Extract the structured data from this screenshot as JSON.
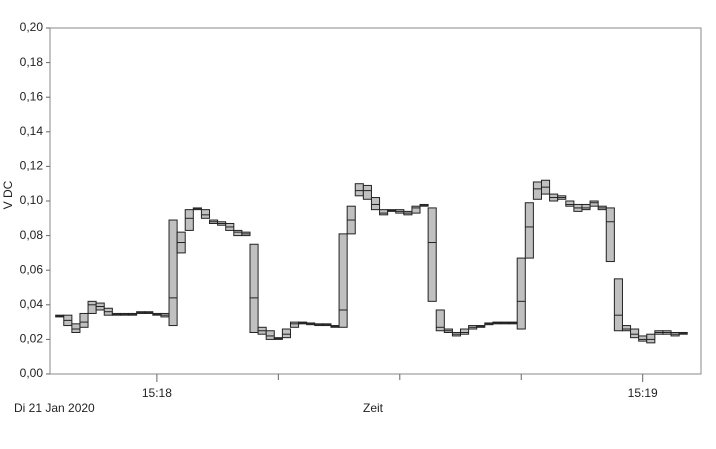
{
  "chart_data": {
    "type": "range-box",
    "y_label": "V DC",
    "x_label": "Zeit",
    "date_label": "Di  21 Jan 2020",
    "xlim": [
      1066.8,
      1147.2
    ],
    "xticks": [
      {
        "value": 1080,
        "label": "15:18"
      },
      {
        "value": 1140,
        "label": "15:19"
      }
    ],
    "xminor_ticks": [
      1095,
      1110,
      1125
    ],
    "ylim": [
      0,
      0.2
    ],
    "yticks": [
      {
        "value": 0,
        "label": "0,00"
      },
      {
        "value": 0.02,
        "label": "0,02"
      },
      {
        "value": 0.04,
        "label": "0,04"
      },
      {
        "value": 0.06,
        "label": "0,06"
      },
      {
        "value": 0.08,
        "label": "0,08"
      },
      {
        "value": 0.1,
        "label": "0,10"
      },
      {
        "value": 0.12,
        "label": "0,12"
      },
      {
        "value": 0.14,
        "label": "0,14"
      },
      {
        "value": 0.16,
        "label": "0,16"
      },
      {
        "value": 0.18,
        "label": "0,18"
      },
      {
        "value": 0.2,
        "label": "0,20"
      }
    ],
    "color": "#c0c0c0",
    "x": [
      1068,
      1069,
      1070,
      1071,
      1072,
      1073,
      1074,
      1075,
      1076,
      1077,
      1078,
      1079,
      1080,
      1081,
      1082,
      1083,
      1084,
      1085,
      1086,
      1087,
      1088,
      1089,
      1090,
      1091,
      1092,
      1093,
      1094,
      1095,
      1096,
      1097,
      1098,
      1099,
      1100,
      1101,
      1102,
      1103,
      1104,
      1105,
      1106,
      1107,
      1108,
      1109,
      1110,
      1111,
      1112,
      1113,
      1114,
      1115,
      1116,
      1117,
      1118,
      1119,
      1120,
      1121,
      1122,
      1123,
      1124,
      1125,
      1126,
      1127,
      1128,
      1129,
      1130,
      1131,
      1132,
      1133,
      1134,
      1135,
      1136,
      1137,
      1138,
      1139,
      1140,
      1141,
      1142,
      1143,
      1144,
      1145
    ],
    "low": [
      0.033,
      0.028,
      0.024,
      0.027,
      0.035,
      0.037,
      0.034,
      0.034,
      0.034,
      0.034,
      0.035,
      0.035,
      0.034,
      0.033,
      0.028,
      0.07,
      0.083,
      0.095,
      0.09,
      0.087,
      0.086,
      0.083,
      0.08,
      0.08,
      0.024,
      0.023,
      0.02,
      0.02,
      0.021,
      0.027,
      0.029,
      0.0285,
      0.028,
      0.028,
      0.027,
      0.027,
      0.081,
      0.103,
      0.101,
      0.095,
      0.092,
      0.094,
      0.093,
      0.092,
      0.093,
      0.097,
      0.042,
      0.025,
      0.024,
      0.022,
      0.023,
      0.026,
      0.027,
      0.0285,
      0.029,
      0.029,
      0.029,
      0.026,
      0.067,
      0.101,
      0.104,
      0.1,
      0.101,
      0.097,
      0.094,
      0.095,
      0.097,
      0.095,
      0.065,
      0.025,
      0.025,
      0.021,
      0.019,
      0.018,
      0.023,
      0.023,
      0.022,
      0.023
    ],
    "high": [
      0.034,
      0.034,
      0.029,
      0.035,
      0.042,
      0.041,
      0.038,
      0.035,
      0.035,
      0.035,
      0.036,
      0.036,
      0.035,
      0.035,
      0.089,
      0.082,
      0.095,
      0.096,
      0.095,
      0.089,
      0.088,
      0.087,
      0.083,
      0.082,
      0.075,
      0.027,
      0.025,
      0.021,
      0.026,
      0.03,
      0.03,
      0.0295,
      0.029,
      0.029,
      0.028,
      0.081,
      0.097,
      0.11,
      0.109,
      0.102,
      0.095,
      0.095,
      0.095,
      0.094,
      0.097,
      0.098,
      0.096,
      0.037,
      0.026,
      0.024,
      0.026,
      0.028,
      0.028,
      0.0295,
      0.03,
      0.03,
      0.03,
      0.067,
      0.099,
      0.111,
      0.112,
      0.104,
      0.103,
      0.1,
      0.098,
      0.098,
      0.1,
      0.097,
      0.096,
      0.055,
      0.028,
      0.026,
      0.022,
      0.023,
      0.025,
      0.025,
      0.024,
      0.024
    ],
    "mid": [
      0.0335,
      0.031,
      0.026,
      0.03,
      0.04,
      0.039,
      0.036,
      0.0345,
      0.0345,
      0.0345,
      0.0355,
      0.0355,
      0.0345,
      0.034,
      0.044,
      0.076,
      0.09,
      0.0955,
      0.092,
      0.088,
      0.087,
      0.085,
      0.082,
      0.081,
      0.044,
      0.025,
      0.022,
      0.0205,
      0.023,
      0.029,
      0.0295,
      0.029,
      0.0285,
      0.0285,
      0.0275,
      0.037,
      0.089,
      0.106,
      0.106,
      0.098,
      0.093,
      0.0945,
      0.094,
      0.093,
      0.096,
      0.0975,
      0.076,
      0.027,
      0.025,
      0.023,
      0.024,
      0.027,
      0.0275,
      0.029,
      0.0295,
      0.0295,
      0.0295,
      0.042,
      0.085,
      0.107,
      0.108,
      0.102,
      0.102,
      0.098,
      0.096,
      0.096,
      0.099,
      0.096,
      0.088,
      0.034,
      0.026,
      0.023,
      0.02,
      0.02,
      0.024,
      0.024,
      0.023,
      0.0235
    ]
  }
}
